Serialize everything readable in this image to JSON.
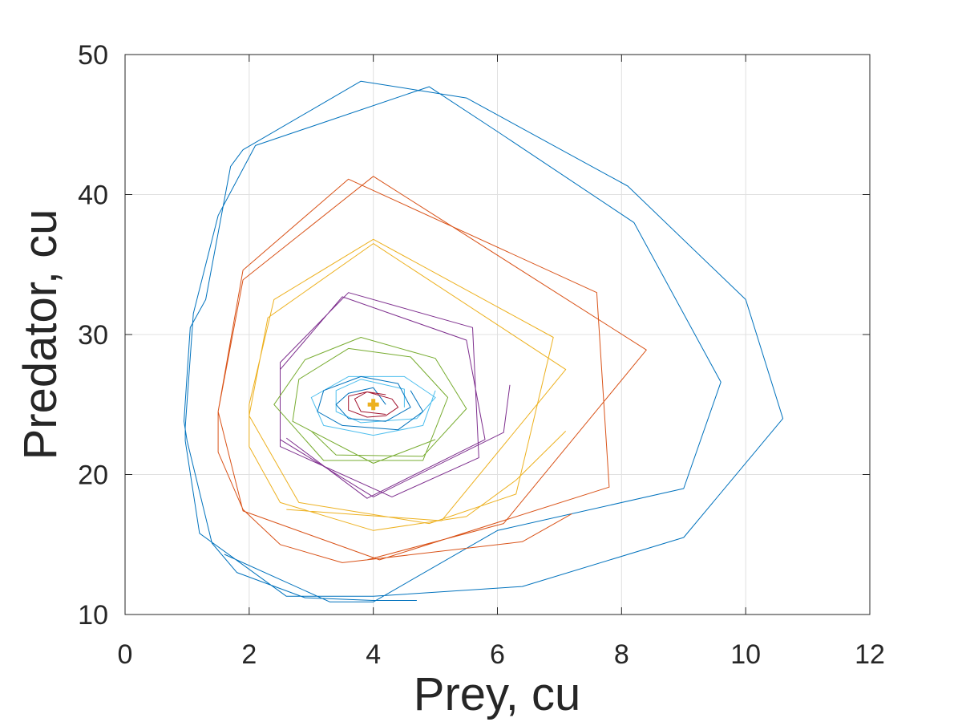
{
  "chart_data": {
    "type": "line",
    "title": "",
    "xlabel": "Prey, cu",
    "ylabel": "Predator, cu",
    "xlim": [
      0,
      12
    ],
    "ylim": [
      10,
      50
    ],
    "xticks": [
      "0",
      "2",
      "4",
      "6",
      "8",
      "10",
      "12"
    ],
    "yticks": [
      "10",
      "20",
      "30",
      "40",
      "50"
    ],
    "grid": true,
    "colors": [
      "#0072BD",
      "#D95319",
      "#EDB120",
      "#7E2F8E",
      "#77AC30",
      "#4DBEEE",
      "#A2142F"
    ],
    "series": [
      {
        "color": "#0072BD",
        "points": [
          [
            4.7,
            11.0
          ],
          [
            4.0,
            11.0
          ],
          [
            2.9,
            11.2
          ],
          [
            1.8,
            13.0
          ],
          [
            1.4,
            15.1
          ],
          [
            1.0,
            22.4
          ],
          [
            0.95,
            23.8
          ],
          [
            1.05,
            30.5
          ],
          [
            1.3,
            32.5
          ],
          [
            1.7,
            42.0
          ],
          [
            1.9,
            43.2
          ],
          [
            3.8,
            48.1
          ],
          [
            5.5,
            46.9
          ],
          [
            8.1,
            40.6
          ],
          [
            10.0,
            32.5
          ],
          [
            10.6,
            24.0
          ],
          [
            9.0,
            15.5
          ],
          [
            6.4,
            12.0
          ],
          [
            4.0,
            11.3
          ],
          [
            2.6,
            11.3
          ],
          [
            1.2,
            15.8
          ],
          [
            0.97,
            22.4
          ],
          [
            0.97,
            23.4
          ],
          [
            1.1,
            31.5
          ],
          [
            1.5,
            38.5
          ],
          [
            2.1,
            43.5
          ],
          [
            4.9,
            47.7
          ],
          [
            6.0,
            44.5
          ],
          [
            8.2,
            38.0
          ],
          [
            9.6,
            26.6
          ],
          [
            9.0,
            19.0
          ],
          [
            6.0,
            16.0
          ],
          [
            4.0,
            10.9
          ],
          [
            3.3,
            10.9
          ],
          [
            1.6,
            14.3
          ]
        ]
      },
      {
        "color": "#D95319",
        "points": [
          [
            7.2,
            17.2
          ],
          [
            6.4,
            15.2
          ],
          [
            3.9,
            13.9
          ],
          [
            3.5,
            13.7
          ],
          [
            2.5,
            15.0
          ],
          [
            1.9,
            17.5
          ],
          [
            1.5,
            21.6
          ],
          [
            1.5,
            24.5
          ],
          [
            1.9,
            34.6
          ],
          [
            3.6,
            41.1
          ],
          [
            7.6,
            33.0
          ],
          [
            7.8,
            19.1
          ],
          [
            4.1,
            13.9
          ],
          [
            1.9,
            17.4
          ],
          [
            1.5,
            24.5
          ],
          [
            1.9,
            33.9
          ],
          [
            4.0,
            41.3
          ],
          [
            8.4,
            28.9
          ],
          [
            6.1,
            16.5
          ],
          [
            3.9,
            13.9
          ]
        ]
      },
      {
        "color": "#EDB120",
        "points": [
          [
            7.1,
            23.1
          ],
          [
            6.3,
            19.6
          ],
          [
            5.5,
            17.0
          ],
          [
            4.0,
            16.0
          ],
          [
            2.5,
            18.0
          ],
          [
            2.0,
            22.0
          ],
          [
            2.0,
            25.0
          ],
          [
            2.4,
            32.5
          ],
          [
            4.0,
            36.8
          ],
          [
            6.9,
            29.8
          ],
          [
            6.3,
            18.6
          ],
          [
            4.9,
            16.5
          ],
          [
            2.8,
            18.0
          ],
          [
            2.0,
            24.2
          ],
          [
            2.3,
            31.2
          ],
          [
            4.0,
            36.5
          ],
          [
            7.1,
            27.5
          ],
          [
            5.1,
            16.7
          ],
          [
            2.6,
            17.5
          ]
        ]
      },
      {
        "color": "#7E2F8E",
        "points": [
          [
            6.2,
            26.4
          ],
          [
            6.1,
            23.0
          ],
          [
            4.0,
            18.4
          ],
          [
            2.5,
            22.5
          ],
          [
            2.5,
            28.0
          ],
          [
            3.6,
            33.0
          ],
          [
            5.6,
            30.5
          ],
          [
            5.7,
            21.2
          ],
          [
            4.3,
            18.4
          ],
          [
            2.5,
            22.0
          ],
          [
            2.5,
            27.5
          ],
          [
            3.5,
            32.7
          ],
          [
            5.5,
            29.6
          ],
          [
            5.8,
            22.5
          ],
          [
            3.9,
            18.3
          ],
          [
            2.6,
            22.6
          ]
        ]
      },
      {
        "color": "#77AC30",
        "points": [
          [
            3.0,
            23.1
          ],
          [
            3.4,
            21.4
          ],
          [
            4.8,
            21.3
          ],
          [
            5.5,
            24.7
          ],
          [
            5.0,
            28.3
          ],
          [
            3.8,
            29.8
          ],
          [
            2.9,
            28.2
          ],
          [
            2.4,
            25.0
          ],
          [
            3.2,
            21.0
          ],
          [
            4.8,
            21.0
          ],
          [
            5.2,
            25.5
          ],
          [
            4.6,
            28.4
          ],
          [
            3.6,
            29.0
          ],
          [
            2.8,
            26.8
          ],
          [
            2.7,
            23.8
          ],
          [
            4.0,
            20.8
          ],
          [
            5.0,
            22.5
          ]
        ]
      },
      {
        "color": "#4DBEEE",
        "points": [
          [
            4.5,
            24.8
          ],
          [
            4.5,
            26.1
          ],
          [
            3.8,
            26.8
          ],
          [
            3.4,
            26.0
          ],
          [
            3.4,
            24.5
          ],
          [
            3.8,
            23.7
          ],
          [
            4.7,
            24.0
          ],
          [
            5.0,
            25.5
          ],
          [
            4.5,
            27.0
          ],
          [
            3.6,
            27.0
          ],
          [
            3.0,
            25.5
          ],
          [
            3.2,
            23.5
          ],
          [
            4.0,
            22.8
          ],
          [
            4.8,
            23.5
          ],
          [
            5.0,
            26.0
          ]
        ]
      },
      {
        "color": "#0072BD",
        "points": [
          [
            4.2,
            25.0
          ],
          [
            4.0,
            26.2
          ],
          [
            3.6,
            25.8
          ],
          [
            3.4,
            25.0
          ],
          [
            3.6,
            24.0
          ],
          [
            4.2,
            23.8
          ],
          [
            4.6,
            24.8
          ],
          [
            4.4,
            26.5
          ],
          [
            3.8,
            27.0
          ],
          [
            3.2,
            26.0
          ],
          [
            3.1,
            24.5
          ],
          [
            3.5,
            23.5
          ],
          [
            4.4,
            23.2
          ],
          [
            4.8,
            24.5
          ],
          [
            4.6,
            26.0
          ]
        ]
      },
      {
        "color": "#A2142F",
        "points": [
          [
            4.2,
            25.7
          ],
          [
            3.9,
            25.9
          ],
          [
            3.6,
            25.6
          ],
          [
            3.6,
            24.6
          ],
          [
            3.9,
            24.1
          ],
          [
            4.2,
            24.2
          ],
          [
            4.4,
            24.8
          ],
          [
            4.3,
            25.4
          ],
          [
            3.9,
            25.9
          ],
          [
            3.7,
            25.4
          ],
          [
            3.8,
            24.5
          ],
          [
            4.2,
            24.3
          ]
        ]
      }
    ],
    "equilibrium": {
      "x": 4.0,
      "y": 25.0,
      "color": "#EDB120"
    }
  }
}
